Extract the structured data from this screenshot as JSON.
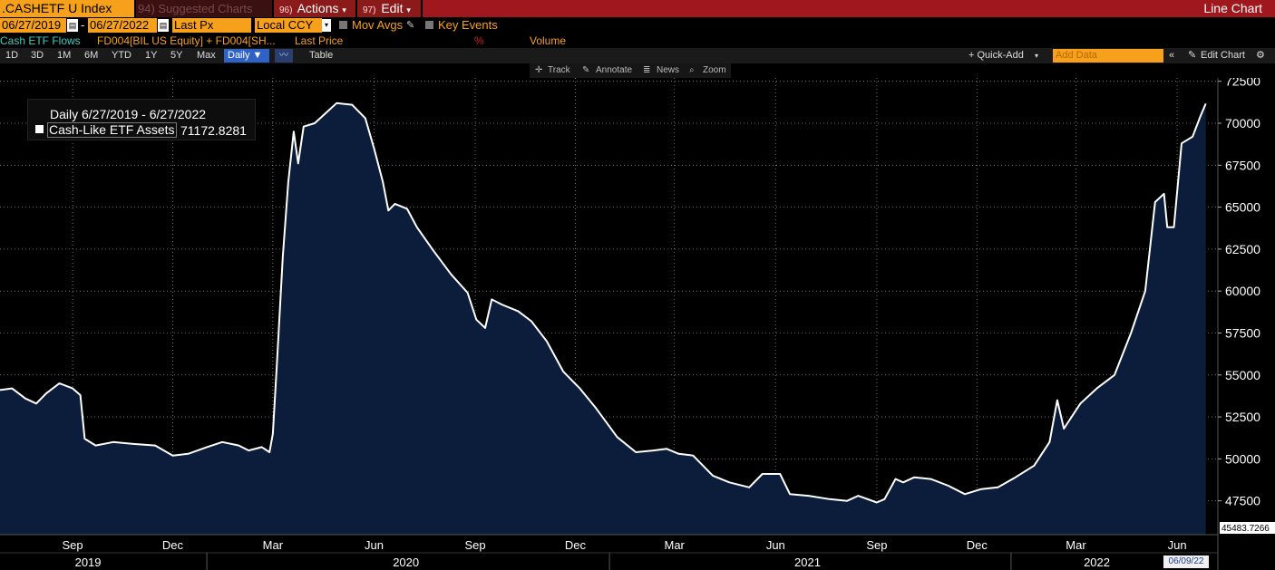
{
  "header": {
    "ticker": ".CASHETF U Index",
    "suggested": "94) Suggested Charts",
    "actions_num": "96)",
    "actions_label": "Actions",
    "edit_num": "97)",
    "edit_label": "Edit",
    "view_title": "Line Chart"
  },
  "controls": {
    "start_date": "06/27/2019",
    "end_date": "06/27/2022",
    "price_field": "Last Px",
    "currency": "Local CCY",
    "mov_avgs": "Mov Avgs",
    "key_events": "Key Events"
  },
  "studies": {
    "title": "Cash ETF Flows",
    "formula": "FD004[BIL US Equity] + FD004[SH...",
    "last_price": "Last Price",
    "pct_symbol": "%",
    "volume": "Volume"
  },
  "toolbar": {
    "periods": [
      "1D",
      "3D",
      "1M",
      "6M",
      "YTD",
      "1Y",
      "5Y",
      "Max"
    ],
    "frequency": "Daily ▼",
    "table": "Table",
    "quick_add": "+ Quick-Add",
    "add_data_placeholder": "Add Data",
    "edit_chart": "Edit Chart"
  },
  "subtoolbar": {
    "track": "Track",
    "annotate": "Annotate",
    "news": "News",
    "zoom": "Zoom"
  },
  "legend": {
    "title": "Daily 6/27/2019 - 6/27/2022",
    "series_name": "Cash-Like ETF Assets",
    "series_value": "71172.8281"
  },
  "current_date": "06/09/22",
  "colors": {
    "accent_orange": "#f7a01c",
    "title_bar_red": "#a0171e",
    "area_fill": "#0b1d3a",
    "line": "#ffffff"
  },
  "chart_data": {
    "type": "area",
    "title": "",
    "xlabel": "",
    "ylabel": "",
    "ylim": [
      45483.7266,
      72700
    ],
    "y_ticks": [
      47500,
      50000,
      52500,
      55000,
      57500,
      60000,
      62500,
      65000,
      67500,
      70000,
      72500
    ],
    "y_tick_labels": [
      "47500",
      "50000",
      "52500",
      "55000",
      "57500",
      "60000",
      "62500",
      "65000",
      "67500",
      "70000",
      "72500"
    ],
    "y_min_label": "45483.7266",
    "x_range": [
      "2019-06-27",
      "2022-06-27"
    ],
    "x_ticks": [
      {
        "date": "2019-09-01",
        "label": "Sep"
      },
      {
        "date": "2019-12-01",
        "label": "Dec"
      },
      {
        "date": "2020-03-01",
        "label": "Mar"
      },
      {
        "date": "2020-06-01",
        "label": "Jun"
      },
      {
        "date": "2020-09-01",
        "label": "Sep"
      },
      {
        "date": "2020-12-01",
        "label": "Dec"
      },
      {
        "date": "2021-03-01",
        "label": "Mar"
      },
      {
        "date": "2021-06-01",
        "label": "Jun"
      },
      {
        "date": "2021-09-01",
        "label": "Sep"
      },
      {
        "date": "2021-12-01",
        "label": "Dec"
      },
      {
        "date": "2022-03-01",
        "label": "Mar"
      },
      {
        "date": "2022-06-01",
        "label": "Jun"
      }
    ],
    "year_labels": [
      {
        "label": "2019",
        "center": "2019-09-15"
      },
      {
        "label": "2020",
        "center": "2020-06-30"
      },
      {
        "label": "2021",
        "center": "2021-06-30"
      },
      {
        "label": "2022",
        "center": "2022-03-20"
      }
    ],
    "year_boundaries": [
      "2020-01-01",
      "2021-01-01",
      "2022-01-01"
    ],
    "grid": true,
    "legend_position": "top-left",
    "series": [
      {
        "name": "Cash-Like ETF Assets",
        "points": [
          [
            "2019-06-27",
            54100
          ],
          [
            "2019-07-08",
            54200
          ],
          [
            "2019-07-20",
            53600
          ],
          [
            "2019-07-30",
            53300
          ],
          [
            "2019-08-08",
            53900
          ],
          [
            "2019-08-20",
            54500
          ],
          [
            "2019-09-01",
            54200
          ],
          [
            "2019-09-08",
            53800
          ],
          [
            "2019-09-12",
            51200
          ],
          [
            "2019-09-22",
            50800
          ],
          [
            "2019-10-08",
            51000
          ],
          [
            "2019-10-25",
            50900
          ],
          [
            "2019-11-15",
            50800
          ],
          [
            "2019-12-01",
            50200
          ],
          [
            "2019-12-15",
            50300
          ],
          [
            "2020-01-01",
            50700
          ],
          [
            "2020-01-15",
            51000
          ],
          [
            "2020-01-30",
            50800
          ],
          [
            "2020-02-08",
            50500
          ],
          [
            "2020-02-20",
            50700
          ],
          [
            "2020-02-27",
            50400
          ],
          [
            "2020-03-01",
            51500
          ],
          [
            "2020-03-05",
            56000
          ],
          [
            "2020-03-10",
            62000
          ],
          [
            "2020-03-15",
            66500
          ],
          [
            "2020-03-20",
            69500
          ],
          [
            "2020-03-24",
            67600
          ],
          [
            "2020-03-29",
            69800
          ],
          [
            "2020-04-08",
            70000
          ],
          [
            "2020-04-18",
            70600
          ],
          [
            "2020-04-28",
            71200
          ],
          [
            "2020-05-12",
            71100
          ],
          [
            "2020-05-24",
            70300
          ],
          [
            "2020-06-01",
            68500
          ],
          [
            "2020-06-09",
            66500
          ],
          [
            "2020-06-14",
            64800
          ],
          [
            "2020-06-20",
            65200
          ],
          [
            "2020-07-01",
            64900
          ],
          [
            "2020-07-10",
            63800
          ],
          [
            "2020-07-25",
            62400
          ],
          [
            "2020-08-10",
            61000
          ],
          [
            "2020-08-25",
            59900
          ],
          [
            "2020-09-02",
            58300
          ],
          [
            "2020-09-10",
            57800
          ],
          [
            "2020-09-16",
            59500
          ],
          [
            "2020-09-25",
            59200
          ],
          [
            "2020-10-10",
            58800
          ],
          [
            "2020-10-22",
            58200
          ],
          [
            "2020-11-05",
            57000
          ],
          [
            "2020-11-20",
            55200
          ],
          [
            "2020-12-05",
            54200
          ],
          [
            "2020-12-20",
            53000
          ],
          [
            "2021-01-08",
            51300
          ],
          [
            "2021-01-25",
            50400
          ],
          [
            "2021-02-10",
            50500
          ],
          [
            "2021-02-22",
            50600
          ],
          [
            "2021-03-05",
            50300
          ],
          [
            "2021-03-18",
            50200
          ],
          [
            "2021-04-05",
            49000
          ],
          [
            "2021-04-20",
            48600
          ],
          [
            "2021-05-08",
            48300
          ],
          [
            "2021-05-20",
            49100
          ],
          [
            "2021-06-05",
            49100
          ],
          [
            "2021-06-14",
            47900
          ],
          [
            "2021-07-01",
            47800
          ],
          [
            "2021-07-20",
            47600
          ],
          [
            "2021-08-05",
            47500
          ],
          [
            "2021-08-15",
            47800
          ],
          [
            "2021-09-01",
            47400
          ],
          [
            "2021-09-08",
            47600
          ],
          [
            "2021-09-18",
            48800
          ],
          [
            "2021-09-25",
            48600
          ],
          [
            "2021-10-05",
            48900
          ],
          [
            "2021-10-20",
            48800
          ],
          [
            "2021-11-05",
            48400
          ],
          [
            "2021-11-20",
            47900
          ],
          [
            "2021-12-05",
            48200
          ],
          [
            "2021-12-20",
            48300
          ],
          [
            "2022-01-05",
            48900
          ],
          [
            "2022-01-22",
            49600
          ],
          [
            "2022-02-05",
            51000
          ],
          [
            "2022-02-12",
            53500
          ],
          [
            "2022-02-18",
            51800
          ],
          [
            "2022-03-05",
            53300
          ],
          [
            "2022-03-20",
            54200
          ],
          [
            "2022-04-05",
            55000
          ],
          [
            "2022-04-20",
            57500
          ],
          [
            "2022-05-03",
            60000
          ],
          [
            "2022-05-12",
            65300
          ],
          [
            "2022-05-20",
            65800
          ],
          [
            "2022-05-23",
            63800
          ],
          [
            "2022-05-29",
            63800
          ],
          [
            "2022-06-05",
            68800
          ],
          [
            "2022-06-15",
            69200
          ],
          [
            "2022-06-22",
            70400
          ],
          [
            "2022-06-27",
            71173
          ]
        ]
      }
    ]
  }
}
